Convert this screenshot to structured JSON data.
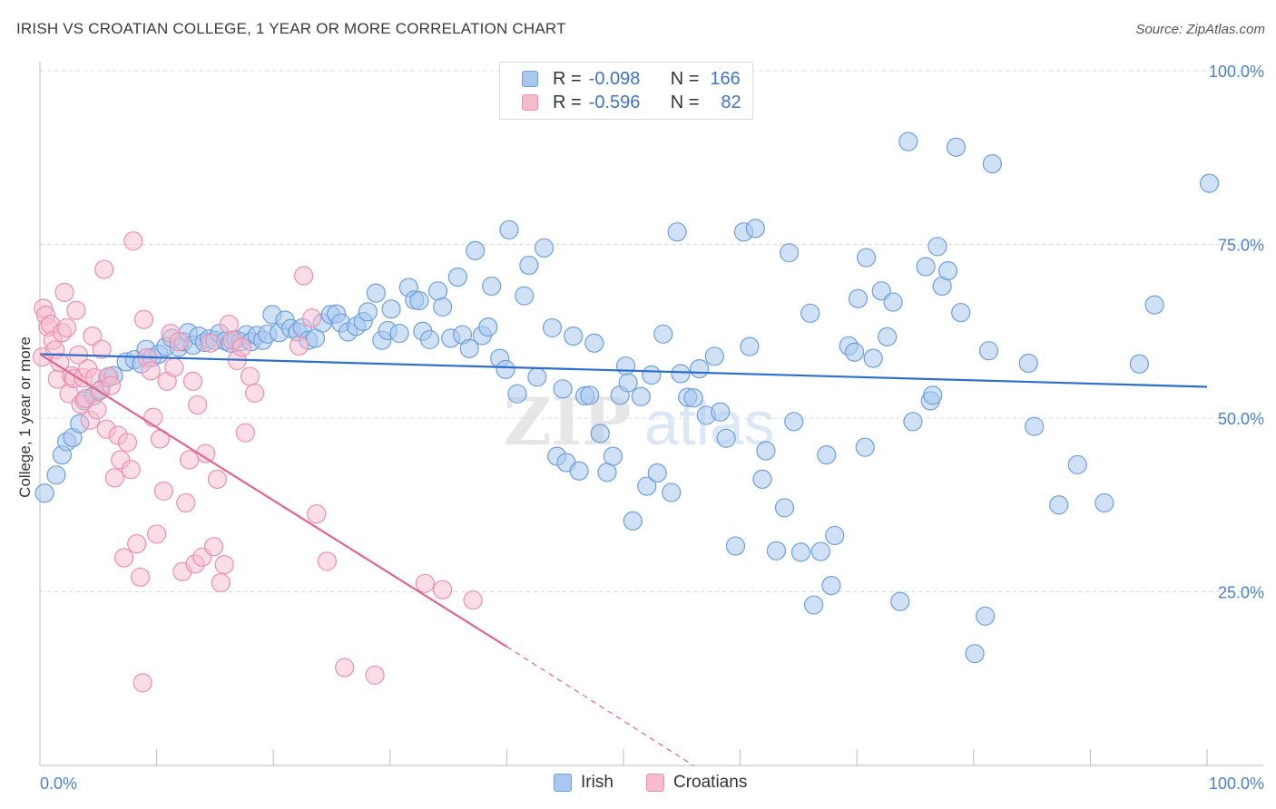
{
  "header": {
    "title": "IRISH VS CROATIAN COLLEGE, 1 YEAR OR MORE CORRELATION CHART",
    "source": "Source: ZipAtlas.com"
  },
  "legend": {
    "r_label": "R =",
    "n_label": "N =",
    "rows": [
      {
        "r": "-0.098",
        "n": "166"
      },
      {
        "r": "-0.596",
        "n": "82"
      }
    ]
  },
  "colors": {
    "irish_fill": "#a9c8ef",
    "irish_stroke": "#6d9fdc",
    "irish_line": "#2f6fcc",
    "croatian_fill": "#f6bccd",
    "croatian_stroke": "#ec8fae",
    "croatian_line": "#e06690",
    "tick_label": "#4a7fd0",
    "grid": "#dcdcdc"
  },
  "chart_data": {
    "type": "scatter",
    "title": "IRISH VS CROATIAN COLLEGE, 1 YEAR OR MORE CORRELATION CHART",
    "ylabel": "College, 1 year or more",
    "xlabel": "",
    "xlim": [
      0,
      100
    ],
    "ylim": [
      0,
      100
    ],
    "x_tick_labels": [
      "0.0%",
      "100.0%"
    ],
    "y_tick_labels": [
      "100.0%",
      "75.0%",
      "50.0%",
      "25.0%"
    ],
    "y_ticks": [
      100,
      75,
      50,
      25
    ],
    "grid": true,
    "legend_position": "top-center",
    "watermark": "ZIPatlas",
    "series": [
      {
        "name": "Irish",
        "R": -0.098,
        "N": 166,
        "trend": {
          "x": [
            0,
            100
          ],
          "y": [
            59.2,
            54.5
          ]
        },
        "points": [
          [
            0.4,
            39.2
          ],
          [
            1.4,
            41.8
          ],
          [
            1.9,
            44.7
          ],
          [
            2.3,
            46.6
          ],
          [
            2.8,
            47.2
          ],
          [
            3.4,
            49.2
          ],
          [
            3.8,
            52.5
          ],
          [
            4.6,
            53.2
          ],
          [
            5.2,
            54.1
          ],
          [
            5.8,
            55.8
          ],
          [
            6.3,
            56.1
          ],
          [
            7.4,
            58.1
          ],
          [
            8.1,
            58.4
          ],
          [
            8.7,
            57.8
          ],
          [
            9.1,
            59.9
          ],
          [
            9.6,
            58.7
          ],
          [
            10.2,
            59.2
          ],
          [
            10.8,
            60.3
          ],
          [
            11.3,
            61.5
          ],
          [
            11.9,
            60.2
          ],
          [
            12.3,
            61.0
          ],
          [
            12.7,
            62.3
          ],
          [
            13.1,
            60.5
          ],
          [
            13.6,
            61.8
          ],
          [
            14.1,
            60.9
          ],
          [
            14.5,
            61.4
          ],
          [
            15.0,
            61.2
          ],
          [
            15.4,
            62.2
          ],
          [
            15.9,
            61.1
          ],
          [
            16.3,
            60.8
          ],
          [
            16.8,
            61.3
          ],
          [
            17.2,
            61.0
          ],
          [
            17.7,
            62.0
          ],
          [
            18.1,
            61.0
          ],
          [
            18.6,
            61.9
          ],
          [
            19.1,
            61.2
          ],
          [
            19.5,
            62.1
          ],
          [
            19.9,
            64.9
          ],
          [
            20.5,
            62.3
          ],
          [
            21.0,
            64.1
          ],
          [
            21.5,
            62.9
          ],
          [
            22.1,
            62.4
          ],
          [
            22.5,
            63.0
          ],
          [
            23.0,
            61.2
          ],
          [
            23.6,
            61.5
          ],
          [
            24.2,
            63.7
          ],
          [
            24.9,
            64.9
          ],
          [
            25.4,
            65.0
          ],
          [
            25.8,
            63.7
          ],
          [
            26.4,
            62.4
          ],
          [
            27.1,
            63.2
          ],
          [
            27.7,
            63.9
          ],
          [
            28.1,
            65.3
          ],
          [
            28.8,
            68.0
          ],
          [
            29.3,
            61.2
          ],
          [
            29.8,
            62.6
          ],
          [
            30.1,
            65.7
          ],
          [
            30.8,
            62.2
          ],
          [
            31.6,
            68.8
          ],
          [
            32.1,
            67.0
          ],
          [
            32.5,
            66.9
          ],
          [
            32.8,
            62.5
          ],
          [
            33.4,
            61.3
          ],
          [
            34.1,
            68.3
          ],
          [
            34.5,
            66.0
          ],
          [
            35.2,
            61.5
          ],
          [
            35.8,
            70.3
          ],
          [
            36.2,
            62.0
          ],
          [
            36.8,
            60.0
          ],
          [
            37.3,
            74.1
          ],
          [
            37.9,
            61.9
          ],
          [
            38.4,
            63.1
          ],
          [
            38.7,
            69.0
          ],
          [
            39.4,
            58.6
          ],
          [
            39.9,
            57.0
          ],
          [
            40.2,
            77.1
          ],
          [
            40.9,
            53.5
          ],
          [
            41.5,
            67.6
          ],
          [
            41.9,
            72.0
          ],
          [
            42.6,
            55.9
          ],
          [
            43.2,
            74.5
          ],
          [
            43.9,
            63.0
          ],
          [
            44.3,
            44.5
          ],
          [
            44.8,
            54.2
          ],
          [
            45.1,
            43.6
          ],
          [
            45.7,
            61.8
          ],
          [
            46.2,
            42.4
          ],
          [
            46.7,
            53.2
          ],
          [
            47.1,
            53.3
          ],
          [
            47.5,
            60.8
          ],
          [
            48.0,
            47.8
          ],
          [
            48.6,
            42.2
          ],
          [
            49.1,
            44.5
          ],
          [
            49.7,
            53.3
          ],
          [
            50.2,
            57.5
          ],
          [
            50.4,
            55.1
          ],
          [
            50.8,
            35.2
          ],
          [
            51.5,
            53.1
          ],
          [
            52.0,
            40.2
          ],
          [
            52.4,
            56.2
          ],
          [
            52.9,
            42.1
          ],
          [
            53.4,
            62.1
          ],
          [
            54.1,
            39.3
          ],
          [
            54.6,
            76.8
          ],
          [
            54.9,
            56.4
          ],
          [
            55.5,
            53.0
          ],
          [
            56.0,
            52.9
          ],
          [
            56.5,
            57.1
          ],
          [
            57.1,
            50.4
          ],
          [
            57.8,
            58.9
          ],
          [
            58.3,
            50.9
          ],
          [
            58.8,
            47.1
          ],
          [
            59.6,
            31.6
          ],
          [
            60.3,
            76.8
          ],
          [
            60.8,
            60.3
          ],
          [
            61.3,
            77.3
          ],
          [
            61.9,
            41.2
          ],
          [
            62.2,
            45.3
          ],
          [
            63.1,
            30.9
          ],
          [
            63.8,
            37.1
          ],
          [
            64.2,
            73.8
          ],
          [
            64.6,
            49.5
          ],
          [
            65.2,
            30.7
          ],
          [
            66.0,
            65.1
          ],
          [
            66.3,
            23.1
          ],
          [
            66.9,
            30.8
          ],
          [
            67.4,
            44.7
          ],
          [
            67.8,
            25.9
          ],
          [
            68.1,
            33.1
          ],
          [
            69.3,
            60.4
          ],
          [
            69.8,
            59.5
          ],
          [
            70.1,
            67.2
          ],
          [
            70.7,
            45.8
          ],
          [
            70.8,
            73.1
          ],
          [
            71.4,
            58.6
          ],
          [
            72.1,
            68.3
          ],
          [
            72.6,
            61.7
          ],
          [
            73.1,
            66.7
          ],
          [
            73.7,
            23.6
          ],
          [
            74.4,
            89.8
          ],
          [
            74.8,
            49.5
          ],
          [
            75.9,
            71.8
          ],
          [
            76.3,
            52.5
          ],
          [
            76.5,
            53.3
          ],
          [
            76.9,
            74.7
          ],
          [
            77.3,
            69.0
          ],
          [
            77.8,
            71.2
          ],
          [
            78.5,
            89.0
          ],
          [
            78.9,
            65.2
          ],
          [
            80.1,
            16.1
          ],
          [
            81.0,
            21.5
          ],
          [
            81.3,
            59.7
          ],
          [
            81.6,
            86.6
          ],
          [
            84.7,
            57.9
          ],
          [
            85.2,
            48.8
          ],
          [
            87.3,
            37.5
          ],
          [
            88.9,
            43.3
          ],
          [
            91.2,
            37.8
          ],
          [
            94.2,
            57.8
          ],
          [
            95.5,
            66.3
          ],
          [
            100.2,
            83.8
          ]
        ]
      },
      {
        "name": "Croatians",
        "R": -0.596,
        "N": 82,
        "trend": {
          "x": [
            0,
            40
          ],
          "y": [
            59.2,
            17.1
          ]
        },
        "trend_dashed": {
          "x": [
            40,
            56
          ],
          "y": [
            17.1,
            0
          ]
        },
        "points": [
          [
            0.2,
            58.8
          ],
          [
            0.3,
            65.8
          ],
          [
            0.5,
            64.8
          ],
          [
            0.7,
            63.1
          ],
          [
            0.9,
            63.5
          ],
          [
            1.1,
            61.2
          ],
          [
            1.3,
            59.8
          ],
          [
            1.5,
            55.6
          ],
          [
            1.7,
            58.0
          ],
          [
            1.9,
            62.3
          ],
          [
            2.1,
            68.1
          ],
          [
            2.3,
            63.0
          ],
          [
            2.5,
            53.5
          ],
          [
            2.7,
            56.1
          ],
          [
            2.9,
            55.7
          ],
          [
            3.1,
            65.5
          ],
          [
            3.3,
            59.1
          ],
          [
            3.5,
            52.0
          ],
          [
            3.7,
            55.8
          ],
          [
            3.9,
            52.8
          ],
          [
            4.1,
            57.1
          ],
          [
            4.3,
            49.7
          ],
          [
            4.5,
            61.8
          ],
          [
            4.7,
            55.8
          ],
          [
            4.9,
            51.2
          ],
          [
            5.1,
            53.9
          ],
          [
            5.3,
            59.9
          ],
          [
            5.5,
            71.4
          ],
          [
            5.7,
            48.4
          ],
          [
            5.9,
            56.0
          ],
          [
            6.1,
            54.7
          ],
          [
            6.4,
            41.4
          ],
          [
            6.7,
            47.5
          ],
          [
            6.9,
            44.0
          ],
          [
            7.2,
            29.9
          ],
          [
            7.5,
            46.5
          ],
          [
            7.8,
            42.6
          ],
          [
            8.0,
            75.5
          ],
          [
            8.3,
            31.9
          ],
          [
            8.6,
            27.1
          ],
          [
            8.9,
            64.2
          ],
          [
            8.8,
            11.9
          ],
          [
            9.2,
            58.7
          ],
          [
            9.5,
            56.8
          ],
          [
            9.7,
            50.1
          ],
          [
            10.0,
            33.3
          ],
          [
            10.3,
            47.0
          ],
          [
            10.6,
            39.5
          ],
          [
            10.9,
            55.3
          ],
          [
            11.2,
            62.2
          ],
          [
            11.5,
            57.3
          ],
          [
            11.9,
            61.0
          ],
          [
            12.2,
            27.9
          ],
          [
            12.5,
            37.8
          ],
          [
            12.8,
            44.0
          ],
          [
            13.1,
            55.3
          ],
          [
            13.3,
            29.0
          ],
          [
            13.5,
            51.9
          ],
          [
            13.9,
            30.0
          ],
          [
            14.2,
            44.9
          ],
          [
            14.6,
            60.8
          ],
          [
            14.9,
            31.5
          ],
          [
            15.2,
            41.2
          ],
          [
            15.5,
            26.3
          ],
          [
            15.8,
            28.9
          ],
          [
            16.2,
            63.5
          ],
          [
            16.5,
            61.2
          ],
          [
            16.9,
            58.3
          ],
          [
            17.3,
            60.2
          ],
          [
            17.6,
            47.9
          ],
          [
            18.0,
            56.0
          ],
          [
            18.4,
            53.6
          ],
          [
            22.2,
            60.4
          ],
          [
            22.6,
            70.5
          ],
          [
            23.3,
            64.4
          ],
          [
            23.7,
            36.2
          ],
          [
            24.6,
            29.4
          ],
          [
            26.1,
            14.1
          ],
          [
            28.7,
            13.0
          ],
          [
            33.0,
            26.2
          ],
          [
            34.5,
            25.3
          ],
          [
            37.1,
            23.8
          ]
        ]
      }
    ]
  },
  "bottom_legend": [
    "Irish",
    "Croatians"
  ]
}
